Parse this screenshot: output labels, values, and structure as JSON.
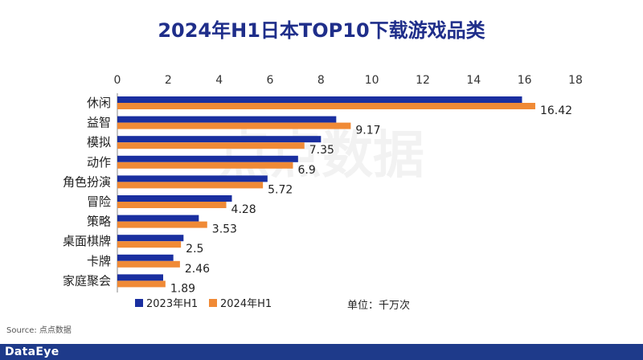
{
  "chart_data": {
    "type": "bar",
    "orientation": "horizontal",
    "title": "2024年H1日本TOP10下载游戏品类",
    "categories": [
      "休闲",
      "益智",
      "模拟",
      "动作",
      "角色扮演",
      "冒险",
      "策略",
      "桌面棋牌",
      "卡牌",
      "家庭聚会"
    ],
    "series": [
      {
        "name": "2023年H1",
        "color": "#1A2FA0",
        "values": [
          15.9,
          8.6,
          8.0,
          7.1,
          5.9,
          4.5,
          3.2,
          2.6,
          2.2,
          1.8
        ]
      },
      {
        "name": "2024年H1",
        "color": "#F08A36",
        "values": [
          16.42,
          9.17,
          7.35,
          6.9,
          5.72,
          4.28,
          3.53,
          2.5,
          2.46,
          1.89
        ]
      }
    ],
    "data_labels": [
      "16.42",
      "9.17",
      "7.35",
      "6.9",
      "5.72",
      "4.28",
      "3.53",
      "2.5",
      "2.46",
      "1.89"
    ],
    "x_ticks": [
      "0",
      "2",
      "4",
      "6",
      "8",
      "10",
      "12",
      "14",
      "16",
      "18"
    ],
    "xlim": [
      0,
      18
    ],
    "axis_position": "top",
    "grid": false,
    "legend_position": "bottom-left",
    "unit_label": "单位：千万次"
  },
  "watermark": "点点数据",
  "source": "Source: 点点数据",
  "brand": "DataEye"
}
